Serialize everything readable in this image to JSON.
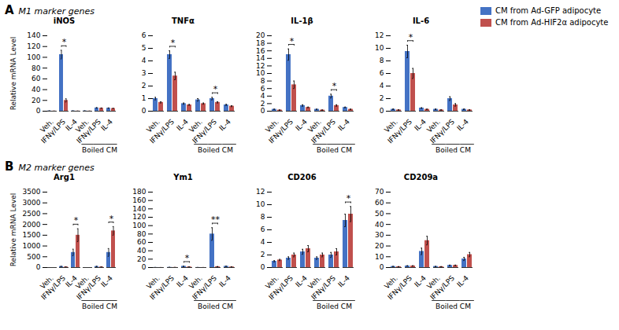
{
  "chart_data": [
    {
      "type": "bar",
      "title": "iNOS",
      "subtitle": "M1 marker genes",
      "ylabel": "Relative mRNA Level",
      "legend": "upper right",
      "categories": [
        "Veh.",
        "IFNγ/LPS",
        "IL-4",
        "Veh.",
        "IFNγ/LPS",
        "IL-4"
      ],
      "series": [
        {
          "name": "CM from Ad-GFP adipocyte",
          "color": "#4472C4",
          "values": [
            0.5,
            105,
            0.5,
            0.5,
            6.0,
            5.5
          ],
          "errors": [
            0.1,
            8,
            0.1,
            0.1,
            0.8,
            0.7
          ]
        },
        {
          "name": "CM from Ad-HIF2α adipocyte",
          "color": "#C0504D",
          "values": [
            0.2,
            20,
            0.2,
            0.2,
            5.5,
            5.0
          ],
          "errors": [
            0.1,
            3,
            0.1,
            0.05,
            0.6,
            0.5
          ]
        }
      ],
      "ylim": [
        0,
        140
      ],
      "yticks": [
        0,
        20,
        40,
        60,
        80,
        100,
        120,
        140
      ],
      "annotations": [
        {
          "text": "A"
        },
        {
          "text": "*",
          "x": 1
        },
        {
          "text": "Boiled CM",
          "x": [
            3,
            5
          ]
        }
      ]
    },
    {
      "type": "bar",
      "title": "TNFα",
      "categories": [
        "Veh.",
        "IFNγ/LPS",
        "IL-4",
        "Veh.",
        "IFNγ/LPS",
        "IL-4"
      ],
      "series": [
        {
          "name": "CM from Ad-GFP adipocyte",
          "color": "#4472C4",
          "values": [
            1.0,
            4.5,
            0.6,
            0.9,
            1.0,
            0.5
          ],
          "errors": [
            0.1,
            0.3,
            0.05,
            0.1,
            0.1,
            0.05
          ]
        },
        {
          "name": "CM from Ad-HIF2α adipocyte",
          "color": "#C0504D",
          "values": [
            0.7,
            2.8,
            0.5,
            0.6,
            0.7,
            0.4
          ],
          "errors": [
            0.05,
            0.3,
            0.04,
            0.05,
            0.05,
            0.04
          ]
        }
      ],
      "ylim": [
        0,
        6.0
      ],
      "yticks": [
        0,
        1.0,
        2.0,
        3.0,
        4.0,
        5.0,
        6.0
      ],
      "annotations": [
        {
          "text": "*",
          "x": 1
        },
        {
          "text": "*",
          "x": 4
        },
        {
          "text": "Boiled CM",
          "x": [
            3,
            5
          ]
        }
      ]
    },
    {
      "type": "bar",
      "title": "IL-1β",
      "categories": [
        "Veh.",
        "IFNγ/LPS",
        "IL-4",
        "Veh.",
        "IFNγ/LPS",
        "IL-4"
      ],
      "series": [
        {
          "name": "CM from Ad-GFP adipocyte",
          "color": "#4472C4",
          "values": [
            0.5,
            15.0,
            1.5,
            0.5,
            4.0,
            1.0
          ],
          "errors": [
            0.05,
            1.5,
            0.2,
            0.05,
            0.5,
            0.1
          ]
        },
        {
          "name": "CM from Ad-HIF2α adipocyte",
          "color": "#C0504D",
          "values": [
            0.3,
            7.0,
            1.0,
            0.3,
            1.5,
            0.5
          ],
          "errors": [
            0.03,
            1.0,
            0.1,
            0.03,
            0.2,
            0.05
          ]
        }
      ],
      "ylim": [
        0,
        20.0
      ],
      "yticks": [
        0,
        2,
        4,
        6,
        8,
        10,
        12,
        14,
        16,
        18,
        20
      ],
      "annotations": [
        {
          "text": "*",
          "x": 1
        },
        {
          "text": "*",
          "x": 4
        },
        {
          "text": "Boiled CM",
          "x": [
            3,
            5
          ]
        }
      ]
    },
    {
      "type": "bar",
      "title": "IL-6",
      "categories": [
        "Veh.",
        "IFNγ/LPS",
        "IL-4",
        "Veh.",
        "IFNγ/LPS",
        "IL-4"
      ],
      "series": [
        {
          "name": "CM from Ad-GFP adipocyte",
          "color": "#4472C4",
          "values": [
            0.3,
            9.5,
            0.5,
            0.3,
            2.0,
            0.3
          ],
          "errors": [
            0.05,
            1.0,
            0.05,
            0.05,
            0.3,
            0.05
          ]
        },
        {
          "name": "CM from Ad-HIF2α adipocyte",
          "color": "#C0504D",
          "values": [
            0.2,
            6.0,
            0.3,
            0.2,
            1.0,
            0.2
          ],
          "errors": [
            0.03,
            0.8,
            0.03,
            0.03,
            0.2,
            0.03
          ]
        }
      ],
      "ylim": [
        0,
        12.0
      ],
      "yticks": [
        0,
        2,
        4,
        6,
        8,
        10,
        12
      ],
      "annotations": [
        {
          "text": "*",
          "x": 1
        },
        {
          "text": "Boiled CM",
          "x": [
            3,
            5
          ]
        }
      ]
    },
    {
      "type": "bar",
      "title": "Arg1",
      "subtitle": "M2 marker genes",
      "ylabel": "Relative mRNA Level",
      "categories": [
        "Veh.",
        "IFNγ/LPS",
        "IL-4",
        "Veh.",
        "IFNγ/LPS",
        "IL-4"
      ],
      "series": [
        {
          "name": "CM from Ad-GFP adipocyte",
          "color": "#4472C4",
          "values": [
            0.5,
            50,
            700,
            0.5,
            50,
            700
          ],
          "errors": [
            0.05,
            10,
            150,
            0.05,
            10,
            180
          ]
        },
        {
          "name": "CM from Ad-HIF2α adipocyte",
          "color": "#C0504D",
          "values": [
            0.3,
            30,
            1500,
            0.3,
            30,
            1700
          ],
          "errors": [
            0.03,
            5,
            300,
            0.03,
            5,
            200
          ]
        }
      ],
      "ylim": [
        0,
        3500
      ],
      "yticks": [
        0,
        500,
        1000,
        1500,
        2000,
        2500,
        3000,
        3500
      ],
      "annotations": [
        {
          "text": "B"
        },
        {
          "text": "*",
          "x": 2
        },
        {
          "text": "*",
          "x": 5
        },
        {
          "text": "Boiled CM",
          "x": [
            3,
            5
          ]
        }
      ]
    },
    {
      "type": "bar",
      "title": "Ym1",
      "categories": [
        "Veh.",
        "IFNγ/LPS",
        "IL-4",
        "Veh.",
        "IFNγ/LPS",
        "IL-4"
      ],
      "series": [
        {
          "name": "CM from Ad-GFP adipocyte",
          "color": "#4472C4",
          "values": [
            0.2,
            0.5,
            3.0,
            0.2,
            80,
            3.0
          ],
          "errors": [
            0.02,
            0.05,
            0.3,
            0.02,
            15,
            0.3
          ]
        },
        {
          "name": "CM from Ad-HIF2α adipocyte",
          "color": "#C0504D",
          "values": [
            0.1,
            0.3,
            1.5,
            0.1,
            2.0,
            1.5
          ],
          "errors": [
            0.01,
            0.03,
            0.2,
            0.01,
            0.3,
            0.2
          ]
        }
      ],
      "ylim": [
        0,
        180
      ],
      "yticks": [
        0,
        20,
        40,
        60,
        80,
        100,
        120,
        140,
        160,
        180
      ],
      "annotations": [
        {
          "text": "*",
          "x": 2
        },
        {
          "text": "**",
          "x": 4
        },
        {
          "text": "Boiled CM",
          "x": [
            3,
            5
          ]
        }
      ]
    },
    {
      "type": "bar",
      "title": "CD206",
      "categories": [
        "Veh.",
        "IFNγ/LPS",
        "IL-4",
        "Veh.",
        "IFNγ/LPS",
        "IL-4"
      ],
      "series": [
        {
          "name": "CM from Ad-GFP adipocyte",
          "color": "#4472C4",
          "values": [
            1.0,
            1.5,
            2.5,
            1.5,
            2.0,
            7.5
          ],
          "errors": [
            0.1,
            0.2,
            0.4,
            0.2,
            0.4,
            1.0
          ]
        },
        {
          "name": "CM from Ad-HIF2α adipocyte",
          "color": "#C0504D",
          "values": [
            1.2,
            2.0,
            3.0,
            2.0,
            2.5,
            8.5
          ],
          "errors": [
            0.1,
            0.3,
            0.5,
            0.3,
            0.5,
            1.2
          ]
        }
      ],
      "ylim": [
        0,
        12.0
      ],
      "yticks": [
        0,
        2,
        4,
        6,
        8,
        10,
        12
      ],
      "annotations": [
        {
          "text": "*",
          "x": 5
        },
        {
          "text": "Boiled CM",
          "x": [
            3,
            5
          ]
        }
      ]
    },
    {
      "type": "bar",
      "title": "CD209a",
      "categories": [
        "Veh.",
        "IFNγ/LPS",
        "IL-4",
        "Veh.",
        "IFNγ/LPS",
        "IL-4"
      ],
      "series": [
        {
          "name": "CM from Ad-GFP adipocyte",
          "color": "#4472C4",
          "values": [
            1.0,
            1.5,
            15.0,
            1.0,
            2.0,
            8.0
          ],
          "errors": [
            0.1,
            0.2,
            3.0,
            0.1,
            0.3,
            1.5
          ]
        },
        {
          "name": "CM from Ad-HIF2α adipocyte",
          "color": "#C0504D",
          "values": [
            0.8,
            1.5,
            25.0,
            0.8,
            2.0,
            12.0
          ],
          "errors": [
            0.05,
            0.2,
            4.0,
            0.05,
            0.3,
            2.0
          ]
        }
      ],
      "ylim": [
        0,
        70.0
      ],
      "yticks": [
        0,
        10,
        20,
        30,
        40,
        50,
        60,
        70
      ],
      "annotations": [
        {
          "text": "Boiled CM",
          "x": [
            3,
            5
          ]
        }
      ]
    }
  ]
}
